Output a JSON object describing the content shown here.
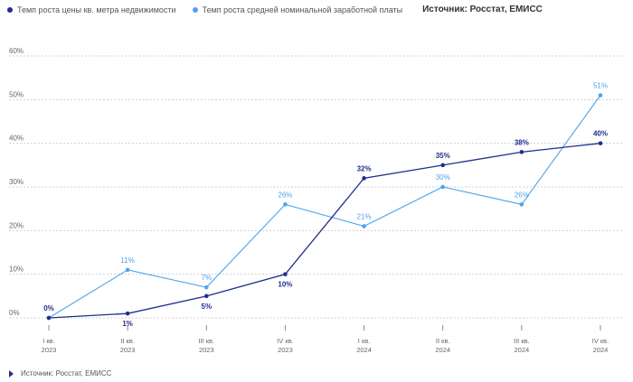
{
  "legend": {
    "series1_label": "Темп роста цены кв. метра недвижимости",
    "series2_label": "Темп роста средней номинальной заработной платы",
    "source": "Источник: Росстат, ЕМИСС"
  },
  "footer": {
    "source": "Источник: Росстат, ЕМИСС"
  },
  "colors": {
    "series1": "#1f2f8c",
    "series2": "#4fa3ec",
    "grid": "#d0d0d0",
    "axis_text": "#666666"
  },
  "chart_data": {
    "type": "line",
    "categories": [
      [
        "I кв.",
        "2023"
      ],
      [
        "II кв.",
        "2023"
      ],
      [
        "III кв.",
        "2023"
      ],
      [
        "IV кв.",
        "2023"
      ],
      [
        "I кв.",
        "2024"
      ],
      [
        "II кв.",
        "2024"
      ],
      [
        "III кв.",
        "2024"
      ],
      [
        "IV кв.",
        "2024"
      ]
    ],
    "tick_mark_label": "I",
    "yticks": [
      "0%",
      "10%",
      "20%",
      "30%",
      "40%",
      "50%",
      "60%"
    ],
    "ylim": [
      0,
      60
    ],
    "grid": true,
    "legend_position": "top-left",
    "series": [
      {
        "name": "Темп роста цены кв. метра недвижимости",
        "values": [
          0,
          1,
          5,
          10,
          32,
          35,
          38,
          40
        ],
        "labels": [
          "0%",
          "1%",
          "5%",
          "10%",
          "32%",
          "35%",
          "38%",
          "40%"
        ]
      },
      {
        "name": "Темп роста средней номинальной заработной платы",
        "values": [
          0,
          11,
          7,
          26,
          21,
          30,
          26,
          51
        ],
        "labels": [
          "",
          "11%",
          "7%",
          "26%",
          "21%",
          "30%",
          "26%",
          "51%"
        ]
      }
    ]
  }
}
